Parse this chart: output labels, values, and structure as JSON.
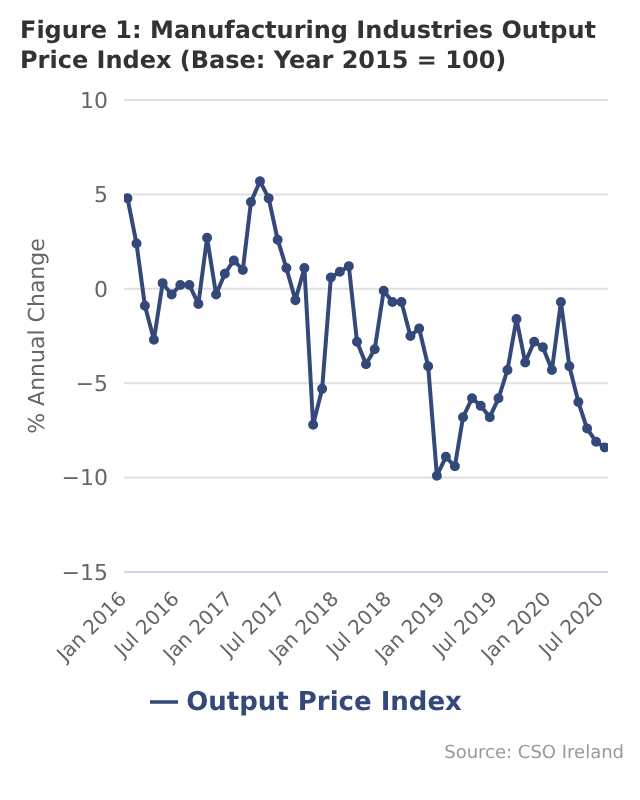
{
  "chart_data": {
    "type": "line",
    "title": "Figure 1: Manufacturing Industries Output Price Index (Base: Year 2015 = 100)",
    "ylabel": "% Annual Change",
    "annotations": [
      "Source: CSO Ireland"
    ],
    "x": [
      "2016-01",
      "2016-02",
      "2016-03",
      "2016-04",
      "2016-05",
      "2016-06",
      "2016-07",
      "2016-08",
      "2016-09",
      "2016-10",
      "2016-11",
      "2016-12",
      "2017-01",
      "2017-02",
      "2017-03",
      "2017-04",
      "2017-05",
      "2017-06",
      "2017-07",
      "2017-08",
      "2017-09",
      "2017-10",
      "2017-11",
      "2017-12",
      "2018-01",
      "2018-02",
      "2018-03",
      "2018-04",
      "2018-05",
      "2018-06",
      "2018-07",
      "2018-08",
      "2018-09",
      "2018-10",
      "2018-11",
      "2018-12",
      "2019-01",
      "2019-02",
      "2019-03",
      "2019-04",
      "2019-05",
      "2019-06",
      "2019-07",
      "2019-08",
      "2019-09",
      "2019-10",
      "2019-11",
      "2019-12",
      "2020-01",
      "2020-02",
      "2020-03",
      "2020-04",
      "2020-05",
      "2020-06",
      "2020-07"
    ],
    "series": [
      {
        "name": "Output Price Index",
        "color": "#34497a",
        "values": [
          4.8,
          2.4,
          -0.9,
          -2.7,
          0.3,
          -0.3,
          0.2,
          0.2,
          -0.8,
          2.7,
          -0.3,
          0.8,
          1.5,
          1.0,
          4.6,
          5.7,
          4.8,
          2.6,
          1.1,
          -0.6,
          1.1,
          -7.2,
          -5.3,
          0.6,
          0.9,
          1.2,
          -2.8,
          -4.0,
          -3.2,
          -0.1,
          -0.7,
          -0.7,
          -2.5,
          -2.1,
          -4.1,
          -9.9,
          -8.9,
          -9.4,
          -6.8,
          -5.8,
          -6.2,
          -6.8,
          -5.8,
          -4.3,
          -1.6,
          -3.9,
          -2.8,
          -3.1,
          -4.3,
          -0.7,
          -4.1,
          -6.0,
          -7.4,
          -8.1,
          -8.4
        ]
      }
    ],
    "xlim": [
      "2015-12-20",
      "2020-07-12"
    ],
    "xticks": [
      {
        "value": "2016-01",
        "label": "Jan 2016"
      },
      {
        "value": "2016-07",
        "label": "Jul 2016"
      },
      {
        "value": "2017-01",
        "label": "Jan 2017"
      },
      {
        "value": "2017-07",
        "label": "Jul 2017"
      },
      {
        "value": "2018-01",
        "label": "Jan 2018"
      },
      {
        "value": "2018-07",
        "label": "Jul 2018"
      },
      {
        "value": "2019-01",
        "label": "Jan 2019"
      },
      {
        "value": "2019-07",
        "label": "Jul 2019"
      },
      {
        "value": "2020-01",
        "label": "Jan 2020"
      },
      {
        "value": "2020-07",
        "label": "Jul 2020"
      }
    ],
    "ylim": [
      -15,
      10
    ],
    "yticks": [
      -15,
      -10,
      -5,
      0,
      5,
      10
    ],
    "grid": "y",
    "legend": "bottom",
    "marker": "circle",
    "line_style": "solid"
  }
}
